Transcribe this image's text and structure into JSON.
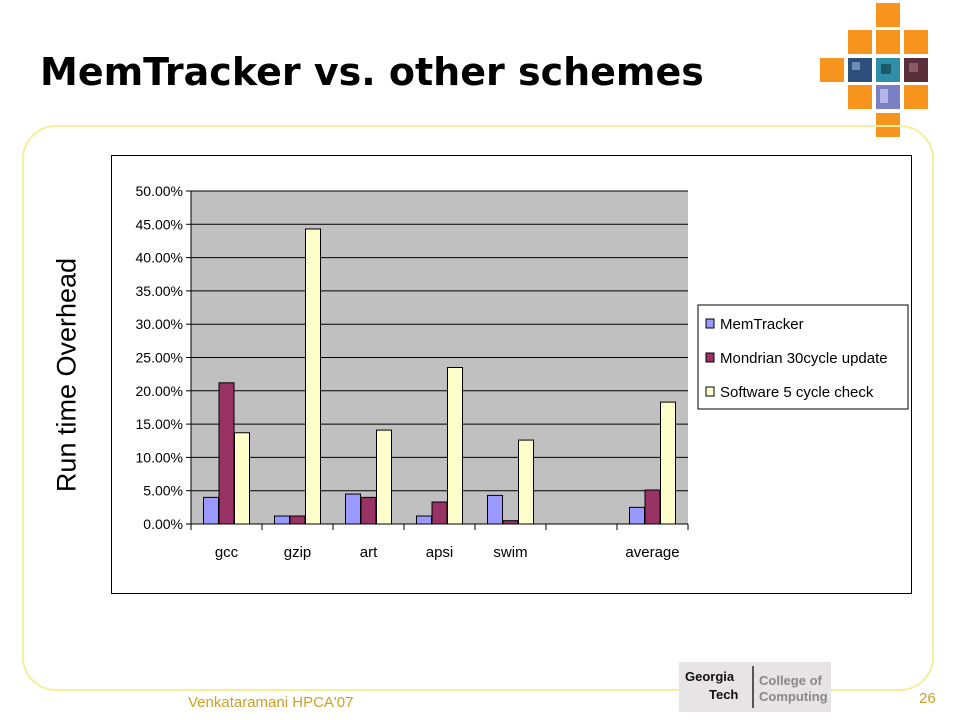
{
  "slide": {
    "title": "MemTracker vs. other schemes",
    "y_axis_label": "Run time  Overhead",
    "footer": "Venkataramani HPCA'07",
    "page_number": "26",
    "logo": {
      "line1": "Georgia",
      "line2": "Tech",
      "line3": "College of",
      "line4": "Computing"
    }
  },
  "colors": {
    "plot_background": "#c0c0c0",
    "memtracker": "#9999ff",
    "mondrian": "#993366",
    "software": "#ffffcc",
    "deco_orange": "#f7941d",
    "frame": "#f4ef9a",
    "footer_text": "#c9a227"
  },
  "chart_data": {
    "type": "bar",
    "categories": [
      "gcc",
      "gzip",
      "art",
      "apsi",
      "swim",
      "",
      "average"
    ],
    "series": [
      {
        "name": "MemTracker",
        "values": [
          4.0,
          1.2,
          4.5,
          1.2,
          4.3,
          null,
          2.5
        ]
      },
      {
        "name": "Mondrian 30cycle update",
        "values": [
          21.2,
          1.2,
          4.0,
          3.3,
          0.5,
          null,
          5.1
        ]
      },
      {
        "name": "Software 5 cycle check",
        "values": [
          13.7,
          44.3,
          14.1,
          23.5,
          12.6,
          null,
          18.3
        ]
      }
    ],
    "y_ticks": [
      "0.00%",
      "5.00%",
      "10.00%",
      "15.00%",
      "20.00%",
      "25.00%",
      "30.00%",
      "35.00%",
      "40.00%",
      "45.00%",
      "50.00%"
    ],
    "ylim": [
      0,
      50
    ],
    "unit": "%",
    "grid": true,
    "legend_position": "right"
  }
}
